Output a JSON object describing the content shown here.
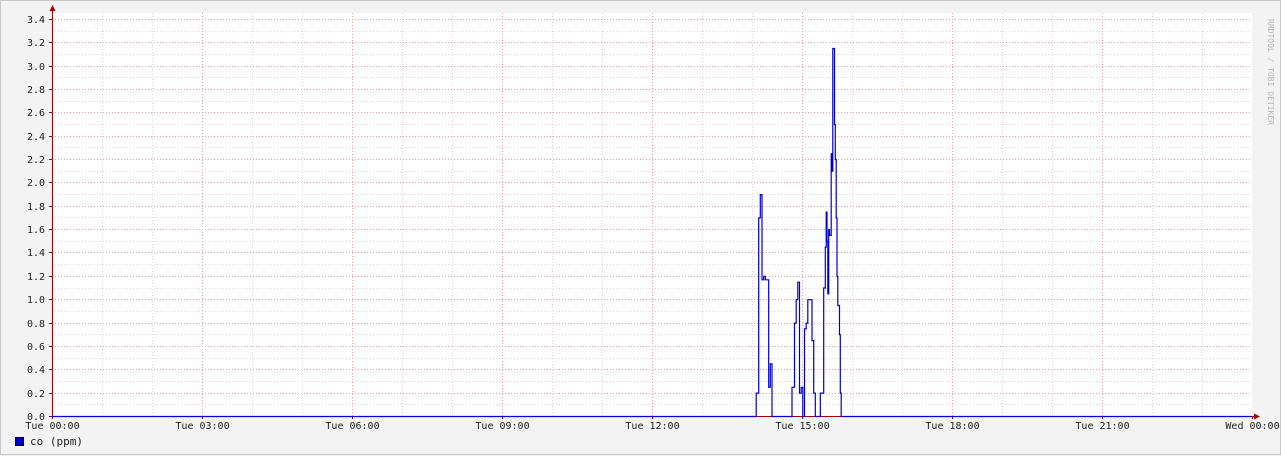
{
  "watermark": "RRDTOOL / TOBI OETIKER",
  "colors": {
    "series": "#0000cc",
    "grid_major": "#f0a0a0",
    "grid_minor": "#d8d8d8",
    "axis": "#a00000",
    "plot_bg": "#ffffff"
  },
  "chart_data": {
    "type": "line",
    "title": "",
    "xlabel": "",
    "ylabel": "",
    "xlim": [
      "Tue 00:00",
      "Wed 00:00"
    ],
    "ylim": [
      0,
      3.45
    ],
    "grid": true,
    "legend_position": "bottom-left",
    "x_ticks": [
      "Tue 00:00",
      "Tue 03:00",
      "Tue 06:00",
      "Tue 09:00",
      "Tue 12:00",
      "Tue 15:00",
      "Tue 18:00",
      "Tue 21:00",
      "Wed 00:00"
    ],
    "y_ticks": [
      "0.0",
      "0.2",
      "0.4",
      "0.6",
      "0.8",
      "1.0",
      "1.2",
      "1.4",
      "1.6",
      "1.8",
      "2.0",
      "2.2",
      "2.4",
      "2.6",
      "2.8",
      "3.0",
      "3.2",
      "3.4"
    ],
    "series": [
      {
        "name": "co (ppm)",
        "step": true,
        "points": [
          [
            "Tue 00:00",
            0
          ],
          [
            "Tue 14:05",
            0
          ],
          [
            "Tue 14:05",
            0.2
          ],
          [
            "Tue 14:08",
            0.2
          ],
          [
            "Tue 14:08",
            1.7
          ],
          [
            "Tue 14:10",
            1.7
          ],
          [
            "Tue 14:10",
            1.9
          ],
          [
            "Tue 14:12",
            1.9
          ],
          [
            "Tue 14:12",
            1.17
          ],
          [
            "Tue 14:14",
            1.17
          ],
          [
            "Tue 14:14",
            1.2
          ],
          [
            "Tue 14:16",
            1.2
          ],
          [
            "Tue 14:16",
            1.17
          ],
          [
            "Tue 14:20",
            1.17
          ],
          [
            "Tue 14:20",
            0.25
          ],
          [
            "Tue 14:22",
            0.25
          ],
          [
            "Tue 14:22",
            0.45
          ],
          [
            "Tue 14:24",
            0.45
          ],
          [
            "Tue 14:24",
            0
          ],
          [
            "Tue 14:48",
            0
          ],
          [
            "Tue 14:48",
            0.25
          ],
          [
            "Tue 14:51",
            0.25
          ],
          [
            "Tue 14:51",
            0.8
          ],
          [
            "Tue 14:53",
            0.8
          ],
          [
            "Tue 14:53",
            1.0
          ],
          [
            "Tue 14:55",
            1.0
          ],
          [
            "Tue 14:55",
            1.15
          ],
          [
            "Tue 14:57",
            1.15
          ],
          [
            "Tue 14:57",
            0.2
          ],
          [
            "Tue 14:59",
            0.2
          ],
          [
            "Tue 14:59",
            0.25
          ],
          [
            "Tue 15:01",
            0.25
          ],
          [
            "Tue 15:01",
            0
          ],
          [
            "Tue 15:03",
            0
          ],
          [
            "Tue 15:03",
            0.75
          ],
          [
            "Tue 15:05",
            0.75
          ],
          [
            "Tue 15:05",
            0.8
          ],
          [
            "Tue 15:07",
            0.8
          ],
          [
            "Tue 15:07",
            1.0
          ],
          [
            "Tue 15:12",
            1.0
          ],
          [
            "Tue 15:12",
            0.65
          ],
          [
            "Tue 15:14",
            0.65
          ],
          [
            "Tue 15:14",
            0.2
          ],
          [
            "Tue 15:16",
            0.2
          ],
          [
            "Tue 15:16",
            0
          ],
          [
            "Tue 15:22",
            0
          ],
          [
            "Tue 15:22",
            0.2
          ],
          [
            "Tue 15:26",
            0.2
          ],
          [
            "Tue 15:26",
            1.1
          ],
          [
            "Tue 15:28",
            1.1
          ],
          [
            "Tue 15:28",
            1.45
          ],
          [
            "Tue 15:29",
            1.45
          ],
          [
            "Tue 15:29",
            1.75
          ],
          [
            "Tue 15:30",
            1.75
          ],
          [
            "Tue 15:30",
            1.5
          ],
          [
            "Tue 15:31",
            1.5
          ],
          [
            "Tue 15:31",
            1.05
          ],
          [
            "Tue 15:32",
            1.05
          ],
          [
            "Tue 15:32",
            1.6
          ],
          [
            "Tue 15:33",
            1.6
          ],
          [
            "Tue 15:33",
            1.55
          ],
          [
            "Tue 15:35",
            1.55
          ],
          [
            "Tue 15:35",
            2.25
          ],
          [
            "Tue 15:36",
            2.25
          ],
          [
            "Tue 15:36",
            2.1
          ],
          [
            "Tue 15:37",
            2.1
          ],
          [
            "Tue 15:37",
            3.15
          ],
          [
            "Tue 15:39",
            3.15
          ],
          [
            "Tue 15:39",
            2.5
          ],
          [
            "Tue 15:40",
            2.5
          ],
          [
            "Tue 15:40",
            2.2
          ],
          [
            "Tue 15:41",
            2.2
          ],
          [
            "Tue 15:41",
            1.7
          ],
          [
            "Tue 15:42",
            1.7
          ],
          [
            "Tue 15:42",
            1.2
          ],
          [
            "Tue 15:43",
            1.2
          ],
          [
            "Tue 15:43",
            0.95
          ],
          [
            "Tue 15:45",
            0.95
          ],
          [
            "Tue 15:45",
            0.7
          ],
          [
            "Tue 15:46",
            0.7
          ],
          [
            "Tue 15:46",
            0.2
          ],
          [
            "Tue 15:47",
            0.2
          ],
          [
            "Tue 15:47",
            0
          ],
          [
            "Wed 00:00",
            0
          ]
        ]
      }
    ]
  }
}
